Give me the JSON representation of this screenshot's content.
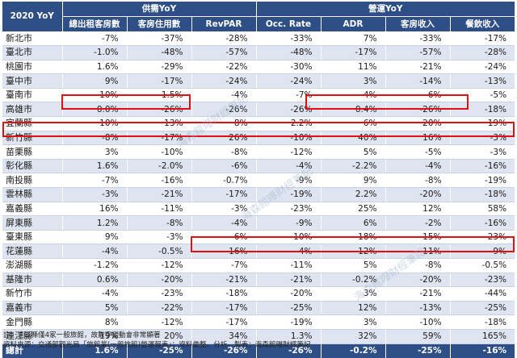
{
  "header": {
    "corner": "2020 YoY",
    "supply_group": "供需YoY",
    "ops_group": "營運YoY",
    "columns": [
      "總出租客房數",
      "客房住用數",
      "RevPAR",
      "Occ. Rate",
      "ADR",
      "客房收入",
      "餐飲收入"
    ]
  },
  "rows": [
    {
      "region": "新北市",
      "v": [
        "-7%",
        "-37%",
        "-28%",
        "-33%",
        "7%",
        "-33%",
        "-17%"
      ]
    },
    {
      "region": "臺北市",
      "v": [
        "-1.0%",
        "-48%",
        "-57%",
        "-48%",
        "-17%",
        "-57%",
        "-28%"
      ]
    },
    {
      "region": "桃園市",
      "v": [
        "1.6%",
        "-29%",
        "-22%",
        "-30%",
        "11%",
        "-21%",
        "-24%"
      ]
    },
    {
      "region": "臺中市",
      "v": [
        "9%",
        "-17%",
        "-24%",
        "-24%",
        "3%",
        "-14%",
        "-13%"
      ]
    },
    {
      "region": "臺南市",
      "v": [
        "10%",
        "1.5%",
        "-4%",
        "-7%",
        "4%",
        "6%",
        "-5%"
      ]
    },
    {
      "region": "高雄市",
      "v": [
        "0.0%",
        "-26%",
        "-26%",
        "-26%",
        "0.4%",
        "-26%",
        "-18%"
      ]
    },
    {
      "region": "宜蘭縣",
      "v": [
        "10%",
        "13%",
        "8%",
        "2.2%",
        "6%",
        "20%",
        "19%"
      ]
    },
    {
      "region": "新竹縣",
      "v": [
        "-8%",
        "-17%",
        "26%",
        "-10%",
        "40%",
        "16%",
        "-3%"
      ]
    },
    {
      "region": "苗栗縣",
      "v": [
        "3%",
        "-10%",
        "-8%",
        "-12%",
        "5%",
        "-5%",
        "-3%"
      ]
    },
    {
      "region": "彰化縣",
      "v": [
        "1.6%",
        "-2.0%",
        "-6%",
        "-4%",
        "-2.2%",
        "-4%",
        "-16%"
      ]
    },
    {
      "region": "南投縣",
      "v": [
        "-7%",
        "-16%",
        "-0.7%",
        "-9%",
        "9%",
        "-8%",
        "-19%"
      ]
    },
    {
      "region": "雲林縣",
      "v": [
        "-3%",
        "-21%",
        "-17%",
        "-19%",
        "2.2%",
        "-20%",
        "-18%"
      ]
    },
    {
      "region": "嘉義縣",
      "v": [
        "16%",
        "-11%",
        "-3%",
        "-23%",
        "25%",
        "12%",
        "58%"
      ]
    },
    {
      "region": "屏東縣",
      "v": [
        "1.2%",
        "-8%",
        "-4%",
        "-9%",
        "6%",
        "-2%",
        "-16%"
      ]
    },
    {
      "region": "臺東縣",
      "v": [
        "9%",
        "-3%",
        "6%",
        "-10%",
        "18%",
        "15%",
        "23%"
      ]
    },
    {
      "region": "花蓮縣",
      "v": [
        "-4%",
        "-0.5%",
        "16%",
        "4%",
        "12%",
        "11%",
        "9%"
      ]
    },
    {
      "region": "澎湖縣",
      "v": [
        "-1.2%",
        "-12%",
        "-7%",
        "-11%",
        "5%",
        "-8%",
        "-0.5%"
      ]
    },
    {
      "region": "基隆市",
      "v": [
        "0.6%",
        "-20%",
        "-21%",
        "-21%",
        "-0.2%",
        "-20%",
        "-23%"
      ]
    },
    {
      "region": "新竹市",
      "v": [
        "-4%",
        "-23%",
        "-18%",
        "-20%",
        "3%",
        "-21%",
        "-44%"
      ]
    },
    {
      "region": "嘉義市",
      "v": [
        "5%",
        "-22%",
        "-17%",
        "-25%",
        "12%",
        "-13%",
        "-25%"
      ]
    },
    {
      "region": "金門縣",
      "v": [
        "8%",
        "-12%",
        "-17%",
        "-19%",
        "3%",
        "-10%",
        "-18%"
      ]
    },
    {
      "region": "連江縣",
      "v": [
        "19%",
        "20%",
        "34%",
        "1.3%",
        "32%",
        "59%",
        "165%"
      ]
    }
  ],
  "total": {
    "region": "總計",
    "v": [
      "1.6%",
      "-25%",
      "-26%",
      "-26%",
      "-0.2%",
      "-25%",
      "-16%"
    ]
  },
  "notes": {
    "line1": "註：連江縣僅4家一般旅館，故數字變動會非常顯著",
    "line2": "資料來源：交通部觀光局「旅館業(一般旅館)營運報表」；資料彙整、分析、製表：海森館曝財經筆記"
  },
  "watermark": "海森館曝財經筆記",
  "colors": {
    "header_bg": "#2e4f86",
    "alt_row": "#dfe5f0",
    "highlight": "#e01010"
  }
}
